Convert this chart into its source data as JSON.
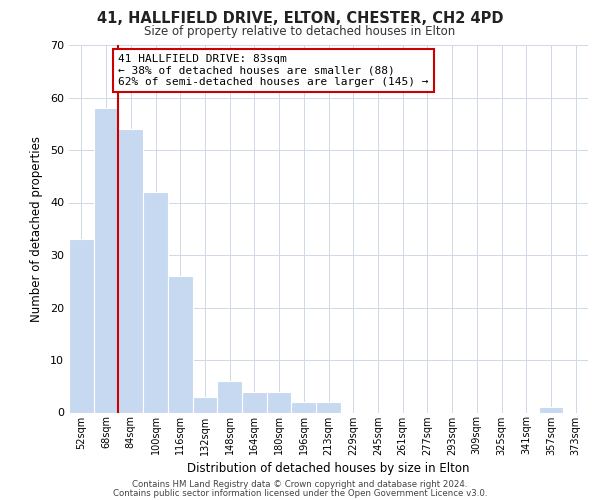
{
  "title": "41, HALLFIELD DRIVE, ELTON, CHESTER, CH2 4PD",
  "subtitle": "Size of property relative to detached houses in Elton",
  "xlabel": "Distribution of detached houses by size in Elton",
  "ylabel": "Number of detached properties",
  "bin_labels": [
    "52sqm",
    "68sqm",
    "84sqm",
    "100sqm",
    "116sqm",
    "132sqm",
    "148sqm",
    "164sqm",
    "180sqm",
    "196sqm",
    "213sqm",
    "229sqm",
    "245sqm",
    "261sqm",
    "277sqm",
    "293sqm",
    "309sqm",
    "325sqm",
    "341sqm",
    "357sqm",
    "373sqm"
  ],
  "bar_heights": [
    33,
    58,
    54,
    42,
    26,
    3,
    6,
    4,
    4,
    2,
    2,
    0,
    0,
    0,
    0,
    0,
    0,
    0,
    0,
    1,
    0
  ],
  "bar_color": "#c6d9f0",
  "bar_edge_color": "#ffffff",
  "property_line_color": "#cc0000",
  "ylim": [
    0,
    70
  ],
  "yticks": [
    0,
    10,
    20,
    30,
    40,
    50,
    60,
    70
  ],
  "annotation_title": "41 HALLFIELD DRIVE: 83sqm",
  "annotation_line1": "← 38% of detached houses are smaller (88)",
  "annotation_line2": "62% of semi-detached houses are larger (145) →",
  "annotation_box_color": "#ffffff",
  "annotation_box_edge": "#cc0000",
  "footer1": "Contains HM Land Registry data © Crown copyright and database right 2024.",
  "footer2": "Contains public sector information licensed under the Open Government Licence v3.0.",
  "background_color": "#ffffff",
  "grid_color": "#d0d8e8"
}
